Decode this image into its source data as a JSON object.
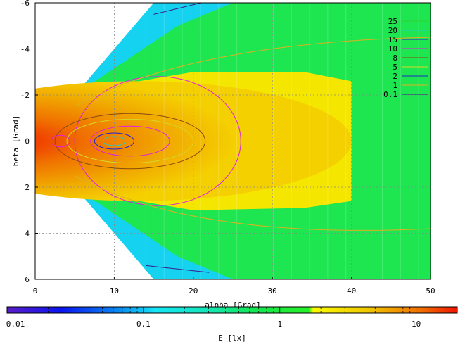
{
  "chart_data": {
    "type": "heatmap",
    "xlabel": "alpha [Grad]",
    "ylabel": "beta [Grad]",
    "colorbar_label": "E [lx]",
    "xlim": [
      0,
      50
    ],
    "ylim": [
      -6,
      6
    ],
    "y_inverted": true,
    "grid": true,
    "x_ticks": [
      "0",
      "10",
      "20",
      "30",
      "40",
      "50"
    ],
    "y_ticks": [
      "-6",
      "-4",
      "-2",
      "0",
      "2",
      "4",
      "6"
    ],
    "colorbar_scale": "log",
    "colorbar_range": [
      0.01,
      20
    ],
    "colorbar_ticks": [
      "0.01",
      "0.1",
      "1",
      "10"
    ],
    "legend_position": "top-right",
    "contours": [
      {
        "level": "25",
        "color": "#2fd12f"
      },
      {
        "level": "20",
        "color": "#26c8c8"
      },
      {
        "level": "15",
        "color": "#2323d6"
      },
      {
        "level": "10",
        "color": "#e020e0"
      },
      {
        "level": "8",
        "color": "#8a4a10"
      },
      {
        "level": "5",
        "color": "#d6d62a"
      },
      {
        "level": "2",
        "color": "#1f2fbf"
      },
      {
        "level": "1",
        "color": "#e0b020"
      },
      {
        "level": "0.1",
        "color": "#3b1a8a"
      }
    ],
    "peak": {
      "alpha": 9.5,
      "beta": 0,
      "value": 25
    }
  }
}
